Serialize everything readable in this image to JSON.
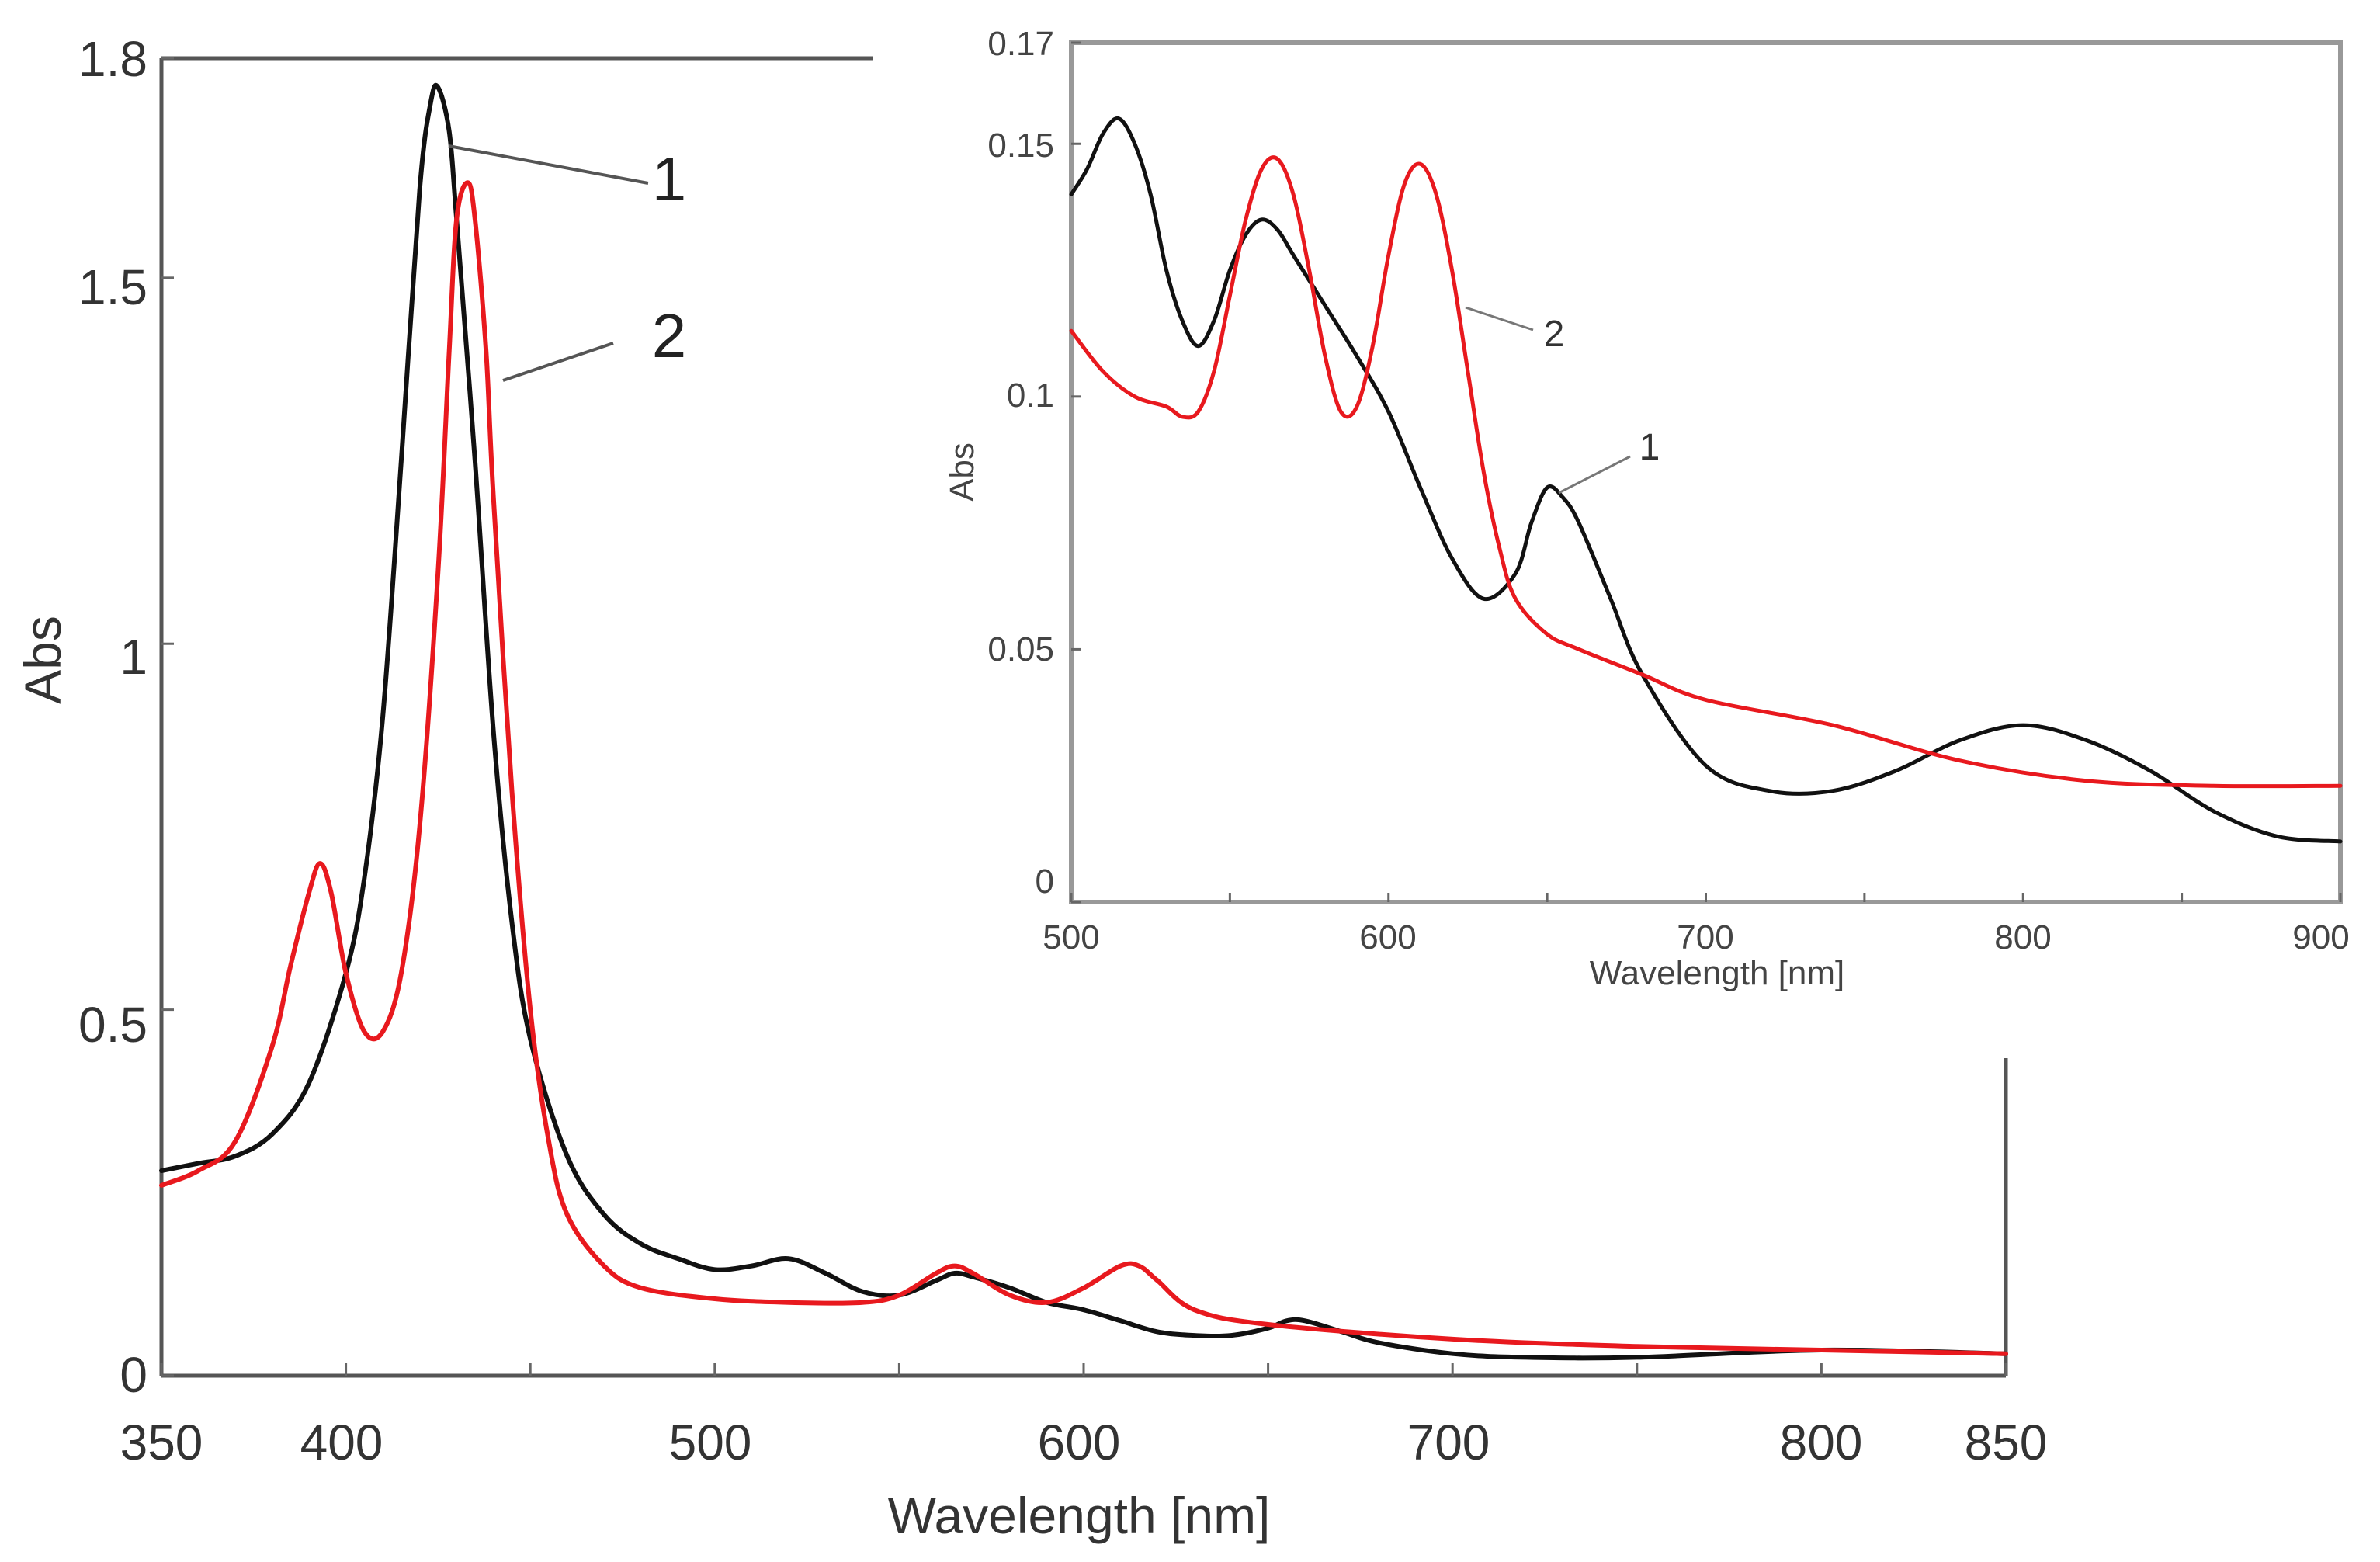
{
  "chart_data": [
    {
      "id": "main",
      "type": "line",
      "title": "",
      "xlabel": "Wavelength [nm]",
      "ylabel": "Abs",
      "xlim": [
        350,
        850
      ],
      "ylim": [
        0,
        1.8
      ],
      "xticks": [
        {
          "value": 350,
          "label": "350"
        },
        {
          "value": 400,
          "label": "400"
        },
        {
          "value": 500,
          "label": "500"
        },
        {
          "value": 600,
          "label": "600"
        },
        {
          "value": 700,
          "label": "700"
        },
        {
          "value": 800,
          "label": "800"
        },
        {
          "value": 850,
          "label": "850"
        }
      ],
      "yticks": [
        {
          "value": 0,
          "label": "0"
        },
        {
          "value": 0.5,
          "label": "0.5"
        },
        {
          "value": 1,
          "label": "1"
        },
        {
          "value": 1.5,
          "label": "1.5"
        },
        {
          "value": 1.8,
          "label": "1.8"
        }
      ],
      "series": [
        {
          "name": "1",
          "color": "#111111",
          "x": [
            350,
            360,
            370,
            380,
            390,
            400,
            405,
            410,
            415,
            420,
            423,
            425,
            428,
            430,
            435,
            440,
            445,
            450,
            460,
            470,
            480,
            490,
            500,
            510,
            520,
            530,
            540,
            550,
            560,
            565,
            570,
            580,
            590,
            600,
            610,
            620,
            630,
            640,
            650,
            655,
            660,
            670,
            680,
            700,
            720,
            750,
            800,
            850
          ],
          "y": [
            0.28,
            0.29,
            0.3,
            0.33,
            0.4,
            0.55,
            0.68,
            0.9,
            1.25,
            1.62,
            1.74,
            1.76,
            1.7,
            1.58,
            1.25,
            0.88,
            0.62,
            0.46,
            0.3,
            0.22,
            0.18,
            0.16,
            0.145,
            0.15,
            0.16,
            0.14,
            0.115,
            0.11,
            0.13,
            0.14,
            0.135,
            0.12,
            0.1,
            0.09,
            0.075,
            0.06,
            0.055,
            0.055,
            0.065,
            0.075,
            0.075,
            0.06,
            0.045,
            0.03,
            0.025,
            0.025,
            0.035,
            0.03
          ]
        },
        {
          "name": "2",
          "color": "#e8191e",
          "x": [
            350,
            360,
            370,
            380,
            385,
            390,
            393,
            396,
            400,
            405,
            410,
            415,
            420,
            425,
            428,
            430,
            433,
            435,
            438,
            440,
            445,
            450,
            455,
            460,
            470,
            480,
            500,
            520,
            540,
            550,
            560,
            565,
            570,
            580,
            590,
            600,
            610,
            615,
            620,
            630,
            650,
            700,
            750,
            800,
            850
          ],
          "y": [
            0.26,
            0.28,
            0.32,
            0.45,
            0.56,
            0.66,
            0.7,
            0.66,
            0.55,
            0.47,
            0.47,
            0.55,
            0.75,
            1.1,
            1.4,
            1.58,
            1.63,
            1.58,
            1.4,
            1.2,
            0.8,
            0.5,
            0.32,
            0.22,
            0.15,
            0.12,
            0.105,
            0.1,
            0.1,
            0.11,
            0.14,
            0.15,
            0.14,
            0.11,
            0.1,
            0.12,
            0.15,
            0.15,
            0.13,
            0.09,
            0.07,
            0.05,
            0.04,
            0.035,
            0.03
          ]
        }
      ],
      "annotations": [
        {
          "text": "1",
          "target_series": "1"
        },
        {
          "text": "2",
          "target_series": "2"
        }
      ]
    },
    {
      "id": "inset",
      "type": "line",
      "title": "",
      "xlabel": "Wavelength [nm]",
      "ylabel": "Abs",
      "xlim": [
        500,
        900
      ],
      "ylim": [
        0,
        0.17
      ],
      "xticks": [
        {
          "value": 500,
          "label": "500"
        },
        {
          "value": 600,
          "label": "600"
        },
        {
          "value": 700,
          "label": "700"
        },
        {
          "value": 800,
          "label": "800"
        },
        {
          "value": 900,
          "label": "900"
        }
      ],
      "yticks": [
        {
          "value": 0,
          "label": "0"
        },
        {
          "value": 0.05,
          "label": "0.05"
        },
        {
          "value": 0.1,
          "label": "0.1"
        },
        {
          "value": 0.15,
          "label": "0.15"
        },
        {
          "value": 0.17,
          "label": "0.17"
        }
      ],
      "series": [
        {
          "name": "1",
          "color": "#111111",
          "x": [
            500,
            505,
            510,
            515,
            520,
            525,
            530,
            535,
            540,
            545,
            550,
            555,
            560,
            565,
            570,
            580,
            590,
            600,
            610,
            620,
            630,
            640,
            645,
            650,
            655,
            660,
            670,
            680,
            700,
            720,
            740,
            760,
            780,
            800,
            820,
            840,
            860,
            880,
            900
          ],
          "y": [
            0.14,
            0.145,
            0.152,
            0.155,
            0.15,
            0.14,
            0.125,
            0.115,
            0.11,
            0.115,
            0.125,
            0.132,
            0.135,
            0.133,
            0.128,
            0.118,
            0.108,
            0.097,
            0.082,
            0.068,
            0.06,
            0.065,
            0.075,
            0.082,
            0.08,
            0.075,
            0.06,
            0.045,
            0.027,
            0.022,
            0.022,
            0.026,
            0.032,
            0.035,
            0.032,
            0.026,
            0.018,
            0.013,
            0.012
          ]
        },
        {
          "name": "2",
          "color": "#e8191e",
          "x": [
            500,
            510,
            520,
            530,
            535,
            540,
            545,
            550,
            555,
            560,
            565,
            570,
            575,
            580,
            585,
            590,
            595,
            600,
            605,
            610,
            615,
            620,
            625,
            630,
            635,
            640,
            650,
            660,
            680,
            700,
            740,
            780,
            820,
            860,
            900
          ],
          "y": [
            0.113,
            0.105,
            0.1,
            0.098,
            0.096,
            0.097,
            0.105,
            0.12,
            0.135,
            0.145,
            0.147,
            0.14,
            0.125,
            0.108,
            0.097,
            0.098,
            0.11,
            0.128,
            0.142,
            0.146,
            0.14,
            0.125,
            0.105,
            0.085,
            0.07,
            0.06,
            0.053,
            0.05,
            0.045,
            0.04,
            0.035,
            0.028,
            0.024,
            0.023,
            0.023
          ]
        }
      ],
      "annotations": [
        {
          "text": "1",
          "target_series": "1"
        },
        {
          "text": "2",
          "target_series": "2"
        }
      ]
    }
  ]
}
